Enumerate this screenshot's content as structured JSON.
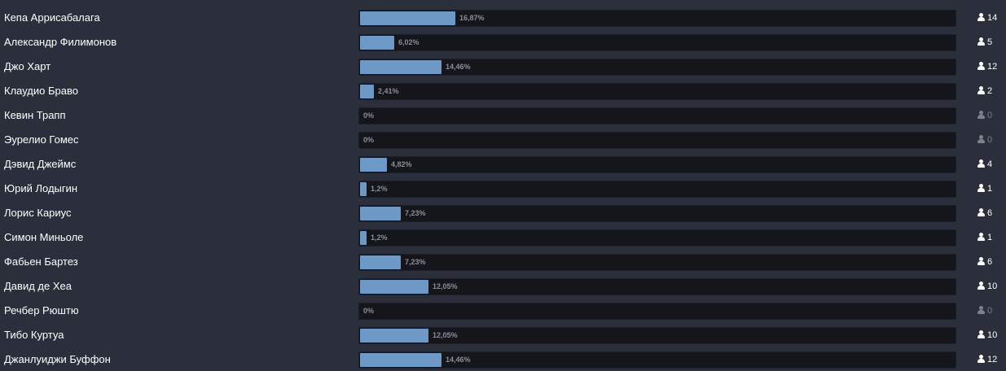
{
  "poll": {
    "colors": {
      "background": "#2b2f3b",
      "bar_fill": "#6e98c6",
      "bar_track": "#15161b",
      "text": "#ffffff",
      "muted": "#7d818b"
    },
    "vote_icon": "user-icon",
    "options": [
      {
        "name": "Кепа Аррисабалага",
        "percent": 16.87,
        "percent_label": "16,87%",
        "votes": "14"
      },
      {
        "name": "Александр Филимонов",
        "percent": 6.02,
        "percent_label": "6,02%",
        "votes": "5"
      },
      {
        "name": "Джо Харт",
        "percent": 14.46,
        "percent_label": "14,46%",
        "votes": "12"
      },
      {
        "name": "Клаудио Браво",
        "percent": 2.41,
        "percent_label": "2,41%",
        "votes": "2"
      },
      {
        "name": "Кевин Трапп",
        "percent": 0,
        "percent_label": "0%",
        "votes": "0"
      },
      {
        "name": "Эурелио Гомес",
        "percent": 0,
        "percent_label": "0%",
        "votes": "0"
      },
      {
        "name": "Дэвид Джеймс",
        "percent": 4.82,
        "percent_label": "4,82%",
        "votes": "4"
      },
      {
        "name": "Юрий Лодыгин",
        "percent": 1.2,
        "percent_label": "1,2%",
        "votes": "1"
      },
      {
        "name": "Лорис Кариус",
        "percent": 7.23,
        "percent_label": "7,23%",
        "votes": "6"
      },
      {
        "name": "Симон Миньоле",
        "percent": 1.2,
        "percent_label": "1,2%",
        "votes": "1"
      },
      {
        "name": "Фабьен Бартез",
        "percent": 7.23,
        "percent_label": "7,23%",
        "votes": "6"
      },
      {
        "name": "Давид де Хеа",
        "percent": 12.05,
        "percent_label": "12,05%",
        "votes": "10"
      },
      {
        "name": "Речбер Рюштю",
        "percent": 0,
        "percent_label": "0%",
        "votes": "0"
      },
      {
        "name": "Тибо Куртуа",
        "percent": 12.05,
        "percent_label": "12,05%",
        "votes": "10"
      },
      {
        "name": "Джанлуиджи Буффон",
        "percent": 14.46,
        "percent_label": "14,46%",
        "votes": "12"
      }
    ]
  }
}
